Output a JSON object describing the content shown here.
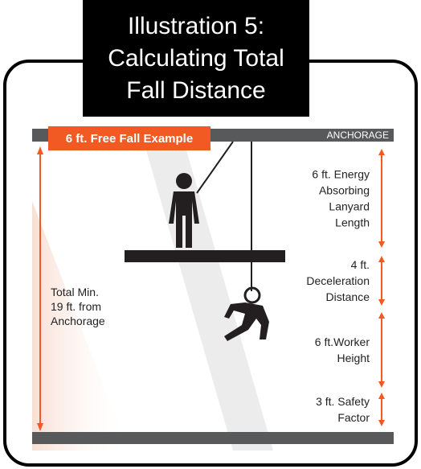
{
  "header": {
    "title": [
      "Illustration 5:",
      "Calculating Total",
      "Fall Distance"
    ]
  },
  "example_label": "6 ft. Free Fall Example",
  "anchorage_label": "ANCHORAGE",
  "total_label": [
    "Total Min.",
    "19 ft. from",
    "Anchorage"
  ],
  "measurements": [
    {
      "lines": [
        "6 ft. Energy",
        "Absorbing",
        "Lanyard",
        "Length"
      ]
    },
    {
      "lines": [
        "4 ft.",
        "Deceleration",
        "Distance"
      ]
    },
    {
      "lines": [
        "6 ft.Worker",
        "Height"
      ]
    },
    {
      "lines": [
        "3 ft. Safety",
        "Factor"
      ]
    }
  ]
}
